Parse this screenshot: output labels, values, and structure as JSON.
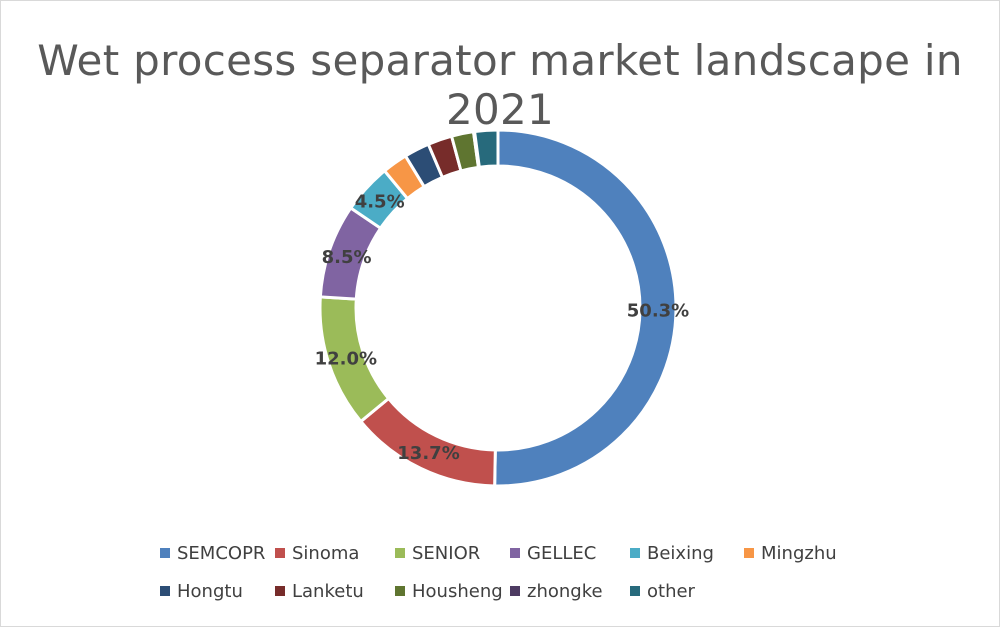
{
  "chart_data": {
    "type": "pie",
    "title": "Wet process separator market landscape in 2021",
    "donut": true,
    "legend_position": "bottom",
    "series": [
      {
        "name": "SEMCOPR",
        "value": 50.3,
        "label": "50.3%",
        "color": "#4f81bd"
      },
      {
        "name": "Sinoma",
        "value": 13.7,
        "label": "13.7%",
        "color": "#c0504d"
      },
      {
        "name": "SENIOR",
        "value": 12.0,
        "label": "12.0%",
        "color": "#9bbb59"
      },
      {
        "name": "GELLEC",
        "value": 8.5,
        "label": "8.5%",
        "color": "#8064a2"
      },
      {
        "name": "Beixing",
        "value": 4.5,
        "label": "4.5%",
        "color": "#4bacc6"
      },
      {
        "name": "Mingzhu",
        "value": 2.3,
        "label": "",
        "color": "#f79646"
      },
      {
        "name": "Hongtu",
        "value": 2.3,
        "label": "",
        "color": "#2c4d75"
      },
      {
        "name": "Lanketu",
        "value": 2.2,
        "label": "",
        "color": "#772c2a"
      },
      {
        "name": "Housheng",
        "value": 2.0,
        "label": "",
        "color": "#5f7530"
      },
      {
        "name": "zhongke",
        "value": 0.1,
        "label": "",
        "color": "#4d3b62"
      },
      {
        "name": "other",
        "value": 2.1,
        "label": "",
        "color": "#276a7c"
      }
    ]
  }
}
